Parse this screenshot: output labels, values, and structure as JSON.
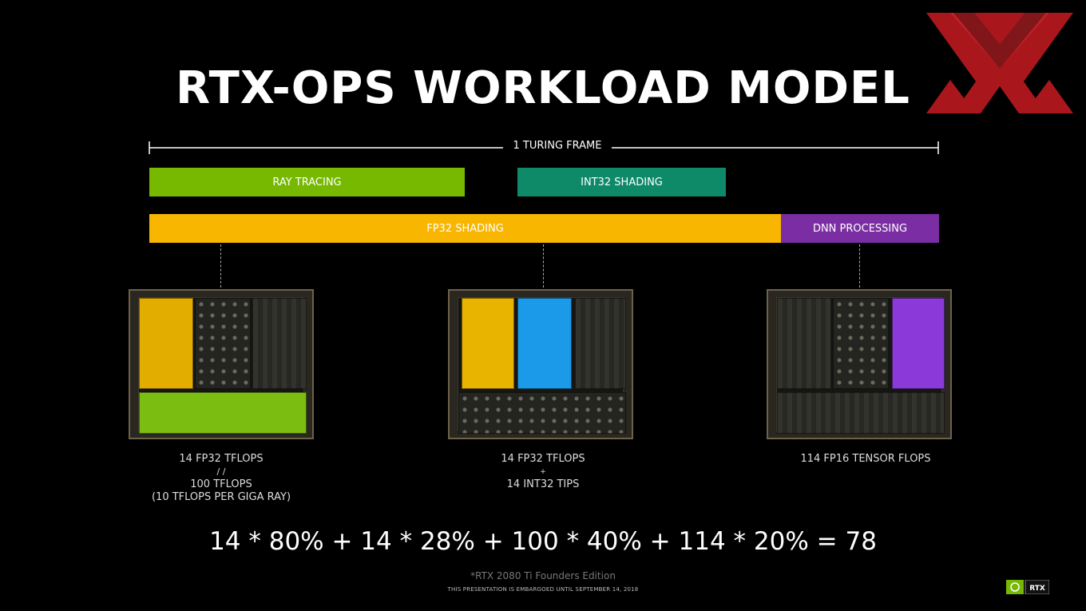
{
  "title": "RTX-OPS WORKLOAD MODEL",
  "frame_label": "1 TURING FRAME",
  "bars": {
    "ray_tracing": "RAY TRACING",
    "int32_shading": "INT32 SHADING",
    "fp32_shading": "FP32 SHADING",
    "dnn_processing": "DNN PROCESSING"
  },
  "chips": [
    {
      "lines": [
        "14 FP32 TFLOPS",
        "/ /",
        "100 TFLOPS",
        "(10 TFLOPS PER GIGA RAY)"
      ]
    },
    {
      "lines": [
        "14 FP32 TFLOPS",
        "+",
        "14 INT32 TIPS"
      ]
    },
    {
      "lines": [
        "114 FP16 TENSOR FLOPS"
      ]
    }
  ],
  "formula": "14 * 80% + 14 * 28% + 100 * 40% + 114 * 20% = 78",
  "footnote": "*RTX 2080 Ti Founders Edition",
  "embargo": "THIS PRESENTATION IS EMBARGOED UNTIL SEPTEMBER 14, 2018",
  "brand": {
    "badge": "RTX"
  },
  "colors": {
    "ray_tracing": "#76b900",
    "int32_shading": "#0e8a68",
    "fp32_shading": "#f8b600",
    "dnn_processing": "#7b2ea3",
    "int32_block": "#1a9ae8",
    "logo": "#b3191f"
  }
}
